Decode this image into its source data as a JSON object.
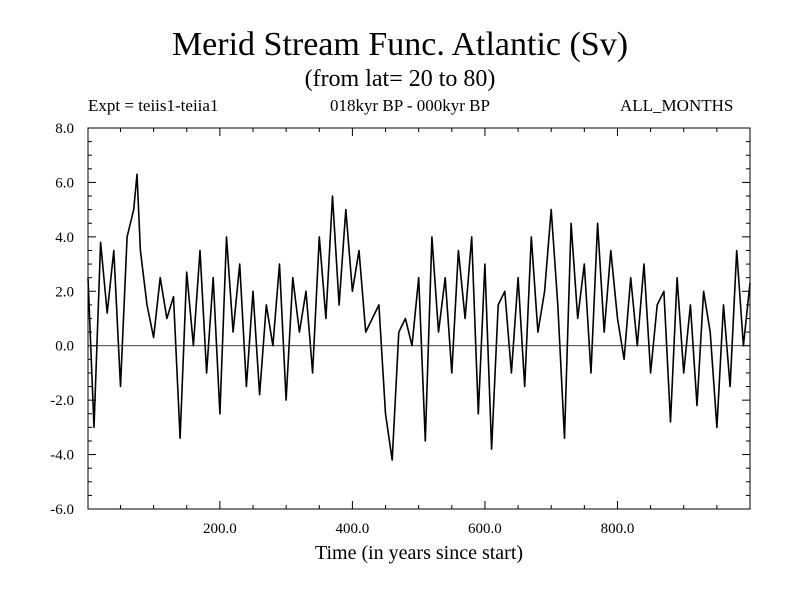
{
  "header": {
    "title": "Merid Stream Func. Atlantic (Sv)",
    "subtitle": "(from lat= 20 to 80)",
    "experiment": "Expt = teiis1-teiia1",
    "period": "018kyr BP - 000kyr BP",
    "months": "ALL_MONTHS"
  },
  "chart_data": {
    "type": "line",
    "title": "Merid Stream Func. Atlantic (Sv)",
    "xlabel": "Time (in years since start)",
    "ylabel": "",
    "xlim": [
      1,
      1000
    ],
    "ylim": [
      -6.0,
      8.0
    ],
    "x_ticks": [
      200,
      400,
      600,
      800
    ],
    "x_tick_labels": [
      "200.0",
      "400.0",
      "600.0",
      "800.0"
    ],
    "y_ticks": [
      -6,
      -4,
      -2,
      0,
      2,
      4,
      6,
      8
    ],
    "y_tick_labels": [
      "-6.0",
      "-4.0",
      "-2.0",
      "0.0",
      "2.0",
      "4.0",
      "6.0",
      "8.0"
    ],
    "zero_line": true,
    "grid": false,
    "line_color": "#000000",
    "series": [
      {
        "x": [
          1,
          10,
          20,
          30,
          40,
          50,
          60,
          70,
          75,
          80,
          90,
          100,
          110,
          120,
          130,
          140,
          150,
          160,
          170,
          180,
          190,
          200,
          210,
          220,
          230,
          240,
          250,
          260,
          270,
          280,
          290,
          300,
          310,
          320,
          330,
          340,
          350,
          360,
          370,
          380,
          390,
          400,
          410,
          420,
          430,
          440,
          450,
          460,
          470,
          480,
          490,
          500,
          510,
          520,
          530,
          540,
          550,
          560,
          570,
          580,
          590,
          600,
          610,
          620,
          630,
          640,
          650,
          660,
          670,
          680,
          690,
          700,
          710,
          720,
          730,
          740,
          750,
          760,
          770,
          780,
          790,
          800,
          810,
          820,
          830,
          840,
          850,
          860,
          870,
          880,
          890,
          900,
          910,
          920,
          930,
          940,
          950,
          960,
          970,
          980,
          990,
          1000
        ],
        "y": [
          2.5,
          -3.0,
          3.8,
          1.2,
          3.5,
          -1.5,
          4.0,
          5.0,
          6.3,
          3.5,
          1.5,
          0.3,
          2.5,
          1.0,
          1.8,
          -3.4,
          2.7,
          0.0,
          3.5,
          -1.0,
          2.5,
          -2.5,
          4.0,
          0.5,
          3.0,
          -1.5,
          2.0,
          -1.8,
          1.5,
          0.0,
          3.0,
          -2.0,
          2.5,
          0.5,
          2.0,
          -1.0,
          4.0,
          1.0,
          5.5,
          1.5,
          5.0,
          2.0,
          3.5,
          0.5,
          1.0,
          1.5,
          -2.5,
          -4.2,
          0.5,
          1.0,
          0.0,
          2.5,
          -3.5,
          4.0,
          0.5,
          2.5,
          -1.0,
          3.5,
          1.0,
          4.0,
          -2.5,
          3.0,
          -3.8,
          1.5,
          2.0,
          -1.0,
          2.5,
          -1.5,
          4.0,
          0.5,
          2.0,
          5.0,
          1.5,
          -3.4,
          4.5,
          1.0,
          3.0,
          -1.0,
          4.5,
          0.5,
          3.5,
          1.0,
          -0.5,
          2.5,
          0.0,
          3.0,
          -1.0,
          1.5,
          2.0,
          -2.8,
          2.5,
          -1.0,
          1.5,
          -2.2,
          2.0,
          0.5,
          -3.0,
          1.5,
          -1.5,
          3.5,
          0.0,
          2.3
        ]
      }
    ]
  }
}
